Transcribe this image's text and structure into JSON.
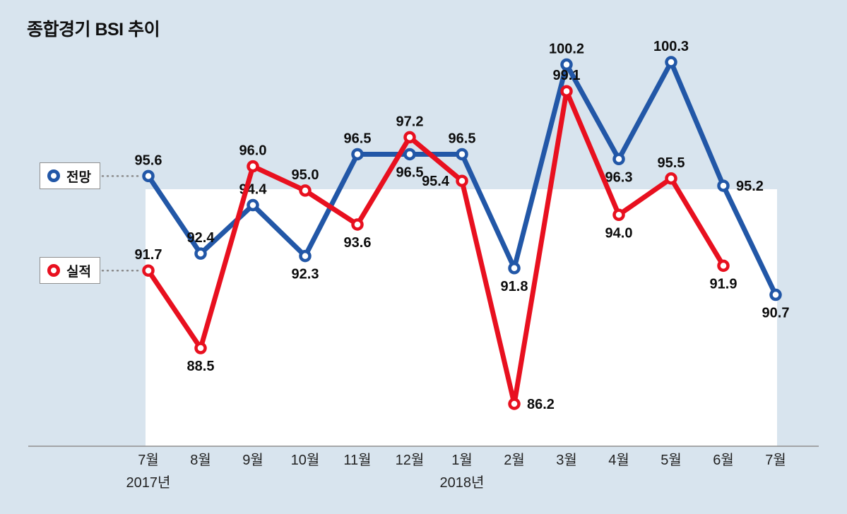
{
  "title": "종합경기 BSI 추이",
  "legend": {
    "forecast": "전망",
    "actual": "실적"
  },
  "colors": {
    "forecast": "#2257a7",
    "actual": "#e8101f",
    "background": "#d8e4ee",
    "band": "#ffffff",
    "axis": "#8f8f8f",
    "leader": "#8a8a8a",
    "label": "#0d0d0d"
  },
  "x_axis": {
    "years": [
      {
        "label": "2017년",
        "index": 0
      },
      {
        "label": "2018년",
        "index": 6
      }
    ]
  },
  "chart_data": {
    "type": "line",
    "title": "종합경기 BSI 추이",
    "xlabel": "",
    "ylabel": "",
    "ylim": [
      86.2,
      100.3
    ],
    "grid": false,
    "legend_position": "left",
    "categories": [
      "7월",
      "8월",
      "9월",
      "10월",
      "11월",
      "12월",
      "1월",
      "2월",
      "3월",
      "4월",
      "5월",
      "6월",
      "7월"
    ],
    "series": [
      {
        "name": "전망",
        "color": "#2257a7",
        "values": [
          95.6,
          92.4,
          94.4,
          92.3,
          96.5,
          96.5,
          96.5,
          91.8,
          100.2,
          96.3,
          100.3,
          95.2,
          90.7
        ],
        "label_pos": [
          "above",
          "above",
          "above",
          "below",
          "above",
          "below",
          "above",
          "below",
          "above",
          "below",
          "above",
          "right",
          "below"
        ]
      },
      {
        "name": "실적",
        "color": "#e8101f",
        "values": [
          91.7,
          88.5,
          96.0,
          95.0,
          93.6,
          97.2,
          95.4,
          86.2,
          99.1,
          94.0,
          95.5,
          91.9
        ],
        "label_pos": [
          "above",
          "below",
          "above",
          "above",
          "below",
          "above",
          "left",
          "right",
          "above",
          "below",
          "above",
          "below"
        ]
      }
    ]
  }
}
